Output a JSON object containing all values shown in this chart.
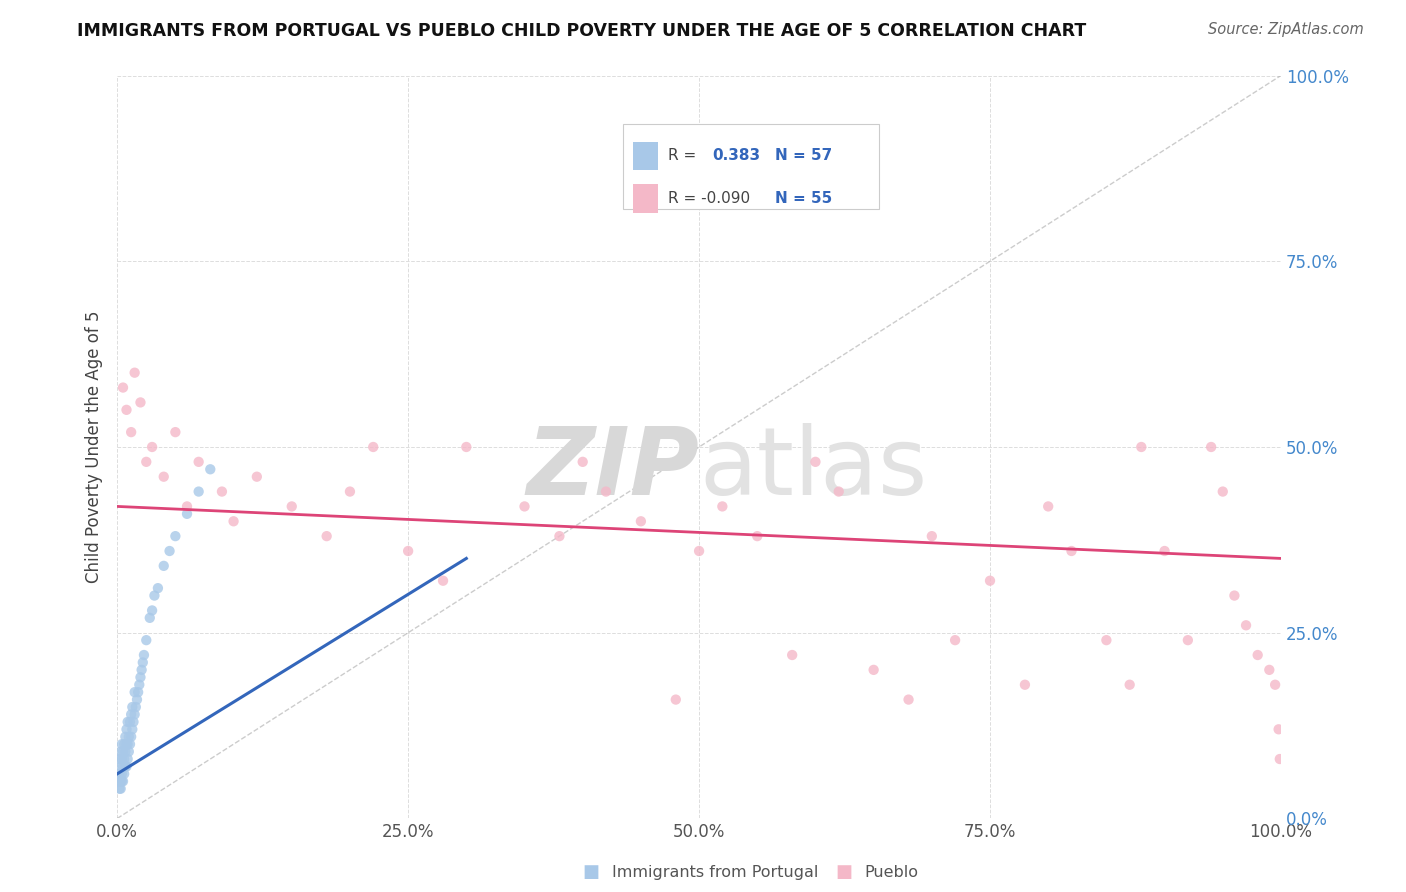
{
  "title": "IMMIGRANTS FROM PORTUGAL VS PUEBLO CHILD POVERTY UNDER THE AGE OF 5 CORRELATION CHART",
  "source": "Source: ZipAtlas.com",
  "ylabel": "Child Poverty Under the Age of 5",
  "watermark_zip": "ZIP",
  "watermark_atlas": "atlas",
  "series1_color": "#a8c8e8",
  "series2_color": "#f4b8c8",
  "trendline1_color": "#3366bb",
  "trendline2_color": "#dd4477",
  "xlim": [
    0.0,
    1.0
  ],
  "ylim": [
    0.0,
    1.0
  ],
  "xticks": [
    0.0,
    0.25,
    0.5,
    0.75,
    1.0
  ],
  "yticks": [
    0.0,
    0.25,
    0.5,
    0.75,
    1.0
  ],
  "xtick_labels": [
    "0.0%",
    "25.0%",
    "50.0%",
    "75.0%",
    "100.0%"
  ],
  "ytick_labels": [
    "0.0%",
    "25.0%",
    "50.0%",
    "75.0%",
    "100.0%"
  ],
  "blue_scatter_x": [
    0.001,
    0.002,
    0.002,
    0.002,
    0.003,
    0.003,
    0.003,
    0.003,
    0.004,
    0.004,
    0.004,
    0.004,
    0.005,
    0.005,
    0.005,
    0.006,
    0.006,
    0.006,
    0.007,
    0.007,
    0.007,
    0.008,
    0.008,
    0.008,
    0.009,
    0.009,
    0.009,
    0.01,
    0.01,
    0.011,
    0.011,
    0.012,
    0.012,
    0.013,
    0.013,
    0.014,
    0.015,
    0.015,
    0.016,
    0.017,
    0.018,
    0.019,
    0.02,
    0.021,
    0.022,
    0.023,
    0.025,
    0.028,
    0.03,
    0.032,
    0.035,
    0.04,
    0.045,
    0.05,
    0.06,
    0.07,
    0.08
  ],
  "blue_scatter_y": [
    0.05,
    0.04,
    0.06,
    0.08,
    0.04,
    0.05,
    0.07,
    0.09,
    0.05,
    0.06,
    0.08,
    0.1,
    0.05,
    0.07,
    0.09,
    0.06,
    0.08,
    0.1,
    0.07,
    0.09,
    0.11,
    0.07,
    0.1,
    0.12,
    0.08,
    0.1,
    0.13,
    0.09,
    0.11,
    0.1,
    0.13,
    0.11,
    0.14,
    0.12,
    0.15,
    0.13,
    0.14,
    0.17,
    0.15,
    0.16,
    0.17,
    0.18,
    0.19,
    0.2,
    0.21,
    0.22,
    0.24,
    0.27,
    0.28,
    0.3,
    0.31,
    0.34,
    0.36,
    0.38,
    0.41,
    0.44,
    0.47
  ],
  "pink_scatter_x": [
    0.005,
    0.008,
    0.012,
    0.015,
    0.02,
    0.025,
    0.03,
    0.04,
    0.05,
    0.06,
    0.07,
    0.09,
    0.1,
    0.12,
    0.15,
    0.18,
    0.2,
    0.22,
    0.25,
    0.28,
    0.3,
    0.35,
    0.38,
    0.4,
    0.42,
    0.45,
    0.48,
    0.5,
    0.52,
    0.55,
    0.58,
    0.6,
    0.62,
    0.65,
    0.68,
    0.7,
    0.72,
    0.75,
    0.78,
    0.8,
    0.82,
    0.85,
    0.87,
    0.88,
    0.9,
    0.92,
    0.94,
    0.95,
    0.96,
    0.97,
    0.98,
    0.99,
    0.995,
    0.998,
    0.999
  ],
  "pink_scatter_y": [
    0.58,
    0.55,
    0.52,
    0.6,
    0.56,
    0.48,
    0.5,
    0.46,
    0.52,
    0.42,
    0.48,
    0.44,
    0.4,
    0.46,
    0.42,
    0.38,
    0.44,
    0.5,
    0.36,
    0.32,
    0.5,
    0.42,
    0.38,
    0.48,
    0.44,
    0.4,
    0.16,
    0.36,
    0.42,
    0.38,
    0.22,
    0.48,
    0.44,
    0.2,
    0.16,
    0.38,
    0.24,
    0.32,
    0.18,
    0.42,
    0.36,
    0.24,
    0.18,
    0.5,
    0.36,
    0.24,
    0.5,
    0.44,
    0.3,
    0.26,
    0.22,
    0.2,
    0.18,
    0.12,
    0.08
  ],
  "series1_label": "Immigrants from Portugal",
  "series2_label": "Pueblo",
  "background_color": "#ffffff",
  "grid_color": "#dddddd",
  "yaxis_tick_color": "#4488cc",
  "xaxis_tick_color": "#555555"
}
